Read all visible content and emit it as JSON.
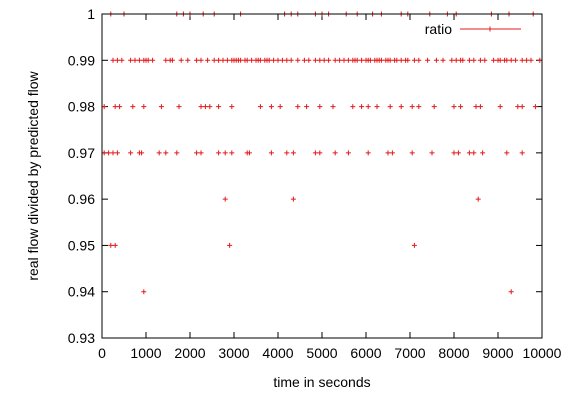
{
  "chart_data": {
    "type": "scatter",
    "xlabel": "time in seconds",
    "ylabel": "real flow divided by predicted flow",
    "xlim": [
      0,
      10000
    ],
    "ylim": [
      0.93,
      1.0
    ],
    "x_ticks": [
      "0",
      "1000",
      "2000",
      "3000",
      "4000",
      "5000",
      "6000",
      "7000",
      "8000",
      "9000",
      "10000"
    ],
    "y_ticks": [
      "0.93",
      "0.94",
      "0.95",
      "0.96",
      "0.97",
      "0.98",
      "0.99",
      "1"
    ],
    "grid": false,
    "legend_position": "top-right",
    "series": [
      {
        "name": "ratio",
        "color": "#e41a1c",
        "marker": "plus",
        "points": [
          [
            200,
            1.0
          ],
          [
            500,
            1.0
          ],
          [
            1700,
            1.0
          ],
          [
            1850,
            1.0
          ],
          [
            2000,
            1.0
          ],
          [
            2300,
            1.0
          ],
          [
            2550,
            1.0
          ],
          [
            3150,
            1.0
          ],
          [
            4150,
            1.0
          ],
          [
            4300,
            1.0
          ],
          [
            4450,
            1.0
          ],
          [
            4850,
            1.0
          ],
          [
            5000,
            1.0
          ],
          [
            5150,
            1.0
          ],
          [
            5550,
            1.0
          ],
          [
            5800,
            1.0
          ],
          [
            6150,
            1.0
          ],
          [
            6350,
            1.0
          ],
          [
            6800,
            1.0
          ],
          [
            6950,
            1.0
          ],
          [
            7450,
            1.0
          ],
          [
            7850,
            1.0
          ],
          [
            8050,
            1.0
          ],
          [
            8850,
            1.0
          ],
          [
            9250,
            1.0
          ],
          [
            9800,
            1.0
          ],
          [
            250,
            0.99
          ],
          [
            350,
            0.99
          ],
          [
            450,
            0.99
          ],
          [
            650,
            0.99
          ],
          [
            750,
            0.99
          ],
          [
            850,
            0.99
          ],
          [
            950,
            0.99
          ],
          [
            1000,
            0.99
          ],
          [
            1050,
            0.99
          ],
          [
            1150,
            0.99
          ],
          [
            1450,
            0.99
          ],
          [
            1550,
            0.99
          ],
          [
            1600,
            0.99
          ],
          [
            1800,
            0.99
          ],
          [
            1950,
            0.99
          ],
          [
            2150,
            0.99
          ],
          [
            2250,
            0.99
          ],
          [
            2400,
            0.99
          ],
          [
            2550,
            0.99
          ],
          [
            2650,
            0.99
          ],
          [
            2750,
            0.99
          ],
          [
            2850,
            0.99
          ],
          [
            2950,
            0.99
          ],
          [
            3000,
            0.99
          ],
          [
            3050,
            0.99
          ],
          [
            3100,
            0.99
          ],
          [
            3150,
            0.99
          ],
          [
            3250,
            0.99
          ],
          [
            3300,
            0.99
          ],
          [
            3400,
            0.99
          ],
          [
            3500,
            0.99
          ],
          [
            3550,
            0.99
          ],
          [
            3600,
            0.99
          ],
          [
            3700,
            0.99
          ],
          [
            3750,
            0.99
          ],
          [
            3800,
            0.99
          ],
          [
            3900,
            0.99
          ],
          [
            4000,
            0.99
          ],
          [
            4100,
            0.99
          ],
          [
            4200,
            0.99
          ],
          [
            4300,
            0.99
          ],
          [
            4450,
            0.99
          ],
          [
            4600,
            0.99
          ],
          [
            4700,
            0.99
          ],
          [
            4850,
            0.99
          ],
          [
            4950,
            0.99
          ],
          [
            5050,
            0.99
          ],
          [
            5150,
            0.99
          ],
          [
            5300,
            0.99
          ],
          [
            5400,
            0.99
          ],
          [
            5500,
            0.99
          ],
          [
            5600,
            0.99
          ],
          [
            5700,
            0.99
          ],
          [
            5750,
            0.99
          ],
          [
            5800,
            0.99
          ],
          [
            5900,
            0.99
          ],
          [
            6000,
            0.99
          ],
          [
            6050,
            0.99
          ],
          [
            6100,
            0.99
          ],
          [
            6200,
            0.99
          ],
          [
            6250,
            0.99
          ],
          [
            6300,
            0.99
          ],
          [
            6350,
            0.99
          ],
          [
            6450,
            0.99
          ],
          [
            6500,
            0.99
          ],
          [
            6550,
            0.99
          ],
          [
            6650,
            0.99
          ],
          [
            6700,
            0.99
          ],
          [
            6800,
            0.99
          ],
          [
            6900,
            0.99
          ],
          [
            6950,
            0.99
          ],
          [
            7100,
            0.99
          ],
          [
            7200,
            0.99
          ],
          [
            7400,
            0.99
          ],
          [
            7600,
            0.99
          ],
          [
            7750,
            0.99
          ],
          [
            7950,
            0.99
          ],
          [
            8050,
            0.99
          ],
          [
            8150,
            0.99
          ],
          [
            8200,
            0.99
          ],
          [
            8350,
            0.99
          ],
          [
            8450,
            0.99
          ],
          [
            8600,
            0.99
          ],
          [
            8700,
            0.99
          ],
          [
            8900,
            0.99
          ],
          [
            9000,
            0.99
          ],
          [
            9050,
            0.99
          ],
          [
            9150,
            0.99
          ],
          [
            9200,
            0.99
          ],
          [
            9300,
            0.99
          ],
          [
            9400,
            0.99
          ],
          [
            9550,
            0.99
          ],
          [
            9650,
            0.99
          ],
          [
            9750,
            0.99
          ],
          [
            9950,
            0.99
          ],
          [
            50,
            0.98
          ],
          [
            300,
            0.98
          ],
          [
            400,
            0.98
          ],
          [
            700,
            0.98
          ],
          [
            950,
            0.98
          ],
          [
            1350,
            0.98
          ],
          [
            1750,
            0.98
          ],
          [
            2250,
            0.98
          ],
          [
            2350,
            0.98
          ],
          [
            2450,
            0.98
          ],
          [
            2650,
            0.98
          ],
          [
            2950,
            0.98
          ],
          [
            3600,
            0.98
          ],
          [
            3850,
            0.98
          ],
          [
            4050,
            0.98
          ],
          [
            4450,
            0.98
          ],
          [
            4650,
            0.98
          ],
          [
            4950,
            0.98
          ],
          [
            5250,
            0.98
          ],
          [
            5700,
            0.98
          ],
          [
            5900,
            0.98
          ],
          [
            6050,
            0.98
          ],
          [
            6250,
            0.98
          ],
          [
            6550,
            0.98
          ],
          [
            6800,
            0.98
          ],
          [
            7050,
            0.98
          ],
          [
            7200,
            0.98
          ],
          [
            7550,
            0.98
          ],
          [
            8000,
            0.98
          ],
          [
            8150,
            0.98
          ],
          [
            8500,
            0.98
          ],
          [
            8600,
            0.98
          ],
          [
            9050,
            0.98
          ],
          [
            9450,
            0.98
          ],
          [
            9550,
            0.98
          ],
          [
            9850,
            0.98
          ],
          [
            50,
            0.97
          ],
          [
            150,
            0.97
          ],
          [
            250,
            0.97
          ],
          [
            350,
            0.97
          ],
          [
            650,
            0.97
          ],
          [
            850,
            0.97
          ],
          [
            900,
            0.97
          ],
          [
            1300,
            0.97
          ],
          [
            1450,
            0.97
          ],
          [
            1700,
            0.97
          ],
          [
            2150,
            0.97
          ],
          [
            2250,
            0.97
          ],
          [
            2650,
            0.97
          ],
          [
            2800,
            0.97
          ],
          [
            2950,
            0.97
          ],
          [
            3300,
            0.97
          ],
          [
            3350,
            0.97
          ],
          [
            3850,
            0.97
          ],
          [
            4200,
            0.97
          ],
          [
            4350,
            0.97
          ],
          [
            4850,
            0.97
          ],
          [
            4950,
            0.97
          ],
          [
            5300,
            0.97
          ],
          [
            5600,
            0.97
          ],
          [
            6050,
            0.97
          ],
          [
            6500,
            0.97
          ],
          [
            6600,
            0.97
          ],
          [
            7050,
            0.97
          ],
          [
            7500,
            0.97
          ],
          [
            8000,
            0.97
          ],
          [
            8100,
            0.97
          ],
          [
            8350,
            0.97
          ],
          [
            8450,
            0.97
          ],
          [
            8650,
            0.97
          ],
          [
            9200,
            0.97
          ],
          [
            9550,
            0.97
          ],
          [
            2800,
            0.96
          ],
          [
            4350,
            0.96
          ],
          [
            8550,
            0.96
          ],
          [
            200,
            0.95
          ],
          [
            300,
            0.95
          ],
          [
            2900,
            0.95
          ],
          [
            7100,
            0.95
          ],
          [
            950,
            0.94
          ],
          [
            9300,
            0.94
          ]
        ]
      }
    ]
  }
}
